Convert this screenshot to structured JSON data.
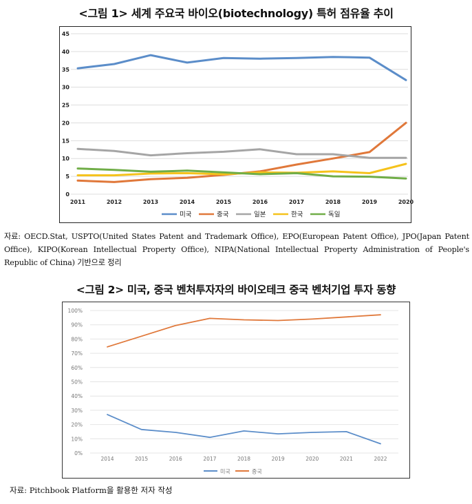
{
  "figure1": {
    "title": "<그림 1> 세계 주요국 바이오(biotechnology) 특허 점유율 추이",
    "source": "자료: OECD.Stat, USPTO(United States Patent and Trademark Office), EPO(European Patent Office), JPO(Japan Patent Office), KIPO(Korean Intellectual Property Office), NIPA(National Intellectual Property Administration of People's Republic of China) 기반으로 정리"
  },
  "figure2": {
    "title": "<그림 2> 미국, 중국 벤처투자자의 바이오테크 중국 벤처기업 투자 동향",
    "source": "자료: Pitchbook Platform을 활용한 저자 작성"
  },
  "chart_data": [
    {
      "type": "line",
      "title": "",
      "xlabel": "",
      "ylabel": "",
      "categories": [
        "2011",
        "2012",
        "2013",
        "2014",
        "2015",
        "2016",
        "2017",
        "2018",
        "2019",
        "2020"
      ],
      "ylim": [
        0,
        45
      ],
      "yticks": [
        "0",
        "5",
        "10",
        "15",
        "20",
        "25",
        "30",
        "35",
        "40",
        "45"
      ],
      "grid": true,
      "legend": "bottom",
      "series": [
        {
          "name": "미국",
          "color": "#5b8dc9",
          "values": [
            35.3,
            36.5,
            39.0,
            36.9,
            38.2,
            38.0,
            38.2,
            38.5,
            38.3,
            32.0
          ]
        },
        {
          "name": "중국",
          "color": "#e0783a",
          "values": [
            3.8,
            3.4,
            4.2,
            4.6,
            5.4,
            6.4,
            8.3,
            10.0,
            11.8,
            20.0
          ]
        },
        {
          "name": "일본",
          "color": "#a5a5a5",
          "values": [
            12.7,
            12.1,
            10.9,
            11.5,
            11.9,
            12.6,
            11.2,
            11.2,
            10.2,
            10.2
          ]
        },
        {
          "name": "한국",
          "color": "#f5c21b",
          "values": [
            5.3,
            5.3,
            5.8,
            5.9,
            5.6,
            6.1,
            6.0,
            6.4,
            5.9,
            8.5
          ]
        },
        {
          "name": "독일",
          "color": "#70ad47",
          "values": [
            7.2,
            6.8,
            6.3,
            6.6,
            6.1,
            5.6,
            5.9,
            5.0,
            4.9,
            4.4
          ]
        }
      ]
    },
    {
      "type": "line",
      "title": "",
      "xlabel": "",
      "ylabel": "",
      "categories": [
        "2014",
        "2015",
        "2016",
        "2017",
        "2018",
        "2019",
        "2020",
        "2021",
        "2022"
      ],
      "ylim": [
        0,
        100
      ],
      "yticks": [
        "0%",
        "10%",
        "20%",
        "30%",
        "40%",
        "50%",
        "60%",
        "70%",
        "80%",
        "90%",
        "100%"
      ],
      "grid": true,
      "legend": "bottom",
      "series": [
        {
          "name": "미국",
          "color": "#5b8dc9",
          "values": [
            27,
            16.5,
            14.5,
            11,
            15.5,
            13.5,
            14.5,
            15,
            6.5
          ]
        },
        {
          "name": "중국",
          "color": "#e0783a",
          "values": [
            74.5,
            82,
            89.5,
            94.5,
            93.5,
            93,
            94,
            95.5,
            97
          ]
        }
      ]
    }
  ]
}
